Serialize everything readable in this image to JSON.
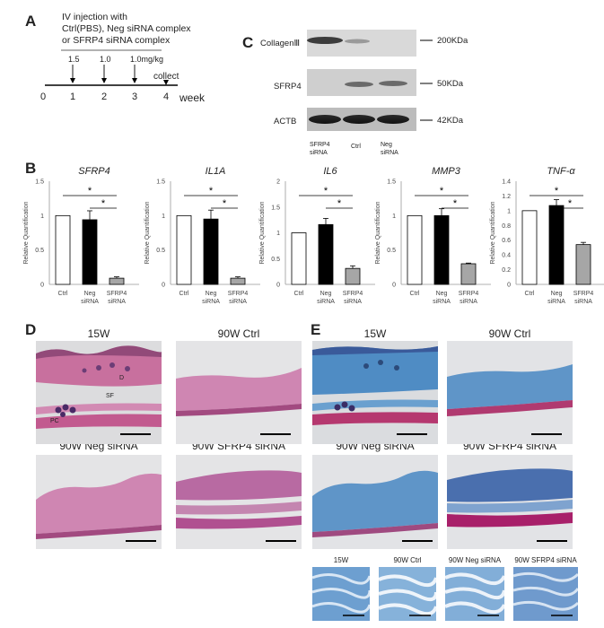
{
  "panel_a": {
    "letter": "A",
    "text_lines": [
      "IV injection with",
      "Ctrl(PBS), Neg siRNA complex",
      "or SFRP4 siRNA complex"
    ],
    "doses": [
      "1.5",
      "1.0",
      "1.0mg/kg"
    ],
    "collect": "collect",
    "ticks": [
      "0",
      "1",
      "2",
      "3",
      "4"
    ],
    "unit": "week"
  },
  "panel_c": {
    "letter": "C",
    "rows": [
      {
        "label": "CollagenⅢ",
        "kda": "200KDa"
      },
      {
        "label": "SFRP4",
        "kda": "50KDa"
      },
      {
        "label": "ACTB",
        "kda": "42KDa"
      }
    ],
    "lanes": [
      {
        "line1": "SFRP4",
        "line2": "siRNA"
      },
      {
        "line1": "Ctrl",
        "line2": ""
      },
      {
        "line1": "Neg",
        "line2": "siRNA"
      }
    ]
  },
  "panel_b": {
    "letter": "B",
    "sig": "*"
  },
  "chart_data": [
    {
      "type": "bar",
      "title": "SFRP4",
      "ylabel": "Relative Quantification",
      "ylim": [
        0,
        1.5
      ],
      "yticks": [
        "0",
        "0.5",
        "1",
        "1.5"
      ],
      "categories": [
        "Ctrl",
        "Neg siRNA",
        "SFRP4 siRNA"
      ],
      "values": [
        1.0,
        0.94,
        0.09
      ],
      "errors": [
        0,
        0.13,
        0.02
      ],
      "colors": [
        "#ffffff",
        "#000000",
        "#a6a6a6"
      ]
    },
    {
      "type": "bar",
      "title": "IL1A",
      "ylabel": "Relative Quantification",
      "ylim": [
        0,
        1.5
      ],
      "yticks": [
        "0",
        "0.5",
        "1",
        "1.5"
      ],
      "categories": [
        "Ctrl",
        "Neg siRNA",
        "SFRP4 siRNA"
      ],
      "values": [
        1.0,
        0.95,
        0.09
      ],
      "errors": [
        0,
        0.13,
        0.02
      ],
      "colors": [
        "#ffffff",
        "#000000",
        "#a6a6a6"
      ]
    },
    {
      "type": "bar",
      "title": "IL6",
      "ylabel": "Relative Quantification",
      "ylim": [
        0,
        2
      ],
      "yticks": [
        "0",
        "0.5",
        "1",
        "1.5",
        "2"
      ],
      "categories": [
        "Ctrl",
        "Neg siRNA",
        "SFRP4 siRNA"
      ],
      "values": [
        1.0,
        1.16,
        0.31
      ],
      "errors": [
        0,
        0.12,
        0.05
      ],
      "colors": [
        "#ffffff",
        "#000000",
        "#a6a6a6"
      ]
    },
    {
      "type": "bar",
      "title": "MMP3",
      "ylabel": "Relative Quantification",
      "ylim": [
        0,
        1.5
      ],
      "yticks": [
        "0",
        "0.5",
        "1",
        "1.5"
      ],
      "categories": [
        "Ctrl",
        "Neg siRNA",
        "SFRP4 siRNA"
      ],
      "values": [
        1.0,
        1.0,
        0.3
      ],
      "errors": [
        0,
        0.1,
        0.01
      ],
      "colors": [
        "#ffffff",
        "#000000",
        "#a6a6a6"
      ]
    },
    {
      "type": "bar",
      "title": "TNF-α",
      "ylabel": "Relative Quantification",
      "ylim": [
        0,
        1.4
      ],
      "yticks": [
        "0",
        "0.2",
        "0.4",
        "0.6",
        "0.8",
        "1",
        "1.2",
        "1.4"
      ],
      "categories": [
        "Ctrl",
        "Neg siRNA",
        "SFRP4 siRNA"
      ],
      "values": [
        1.0,
        1.07,
        0.54
      ],
      "errors": [
        0,
        0.08,
        0.03
      ],
      "colors": [
        "#ffffff",
        "#000000",
        "#a6a6a6"
      ]
    }
  ],
  "panel_d": {
    "letter": "D",
    "titles": [
      "15W",
      "90W Ctrl",
      "90W Neg siRNA",
      "90W SFRP4 siRNA"
    ],
    "annotations": [
      "D",
      "SF",
      "PC"
    ]
  },
  "panel_e": {
    "letter": "E",
    "titles": [
      "15W",
      "90W Ctrl",
      "90W Neg siRNA",
      "90W SFRP4 siRNA"
    ],
    "inset_titles": [
      "15W",
      "90W Ctrl",
      "90W Neg siRNA",
      "90W SFRP4 siRNA"
    ]
  }
}
